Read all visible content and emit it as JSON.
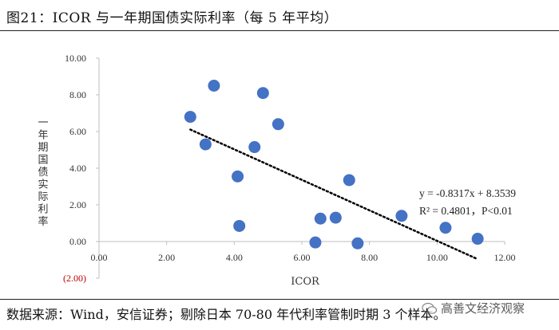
{
  "header": {
    "title": "图21：ICOR 与一年期国债实际利率（每 5 年平均）"
  },
  "footer": {
    "source": "数据来源：Wind，安信证券；剔除日本 70-80 年代利率管制时期 3 个样本。",
    "watermark": "高善文经济观察"
  },
  "chart_data": {
    "type": "scatter",
    "title": "",
    "xlabel": "ICOR",
    "ylabel": "一年期国债实际利率",
    "xlim": [
      0,
      12
    ],
    "ylim": [
      -2,
      10
    ],
    "x_ticks": [
      "0.00",
      "2.00",
      "4.00",
      "6.00",
      "8.00",
      "10.00",
      "12.00"
    ],
    "y_ticks": [
      "10.00",
      "8.00",
      "6.00",
      "4.00",
      "2.00",
      "0.00",
      "(2.00)"
    ],
    "x_tick_values": [
      0,
      2,
      4,
      6,
      8,
      10,
      12
    ],
    "y_tick_values": [
      10,
      8,
      6,
      4,
      2,
      0,
      -2
    ],
    "grid": false,
    "marker_color": "#4472c4",
    "negative_label_color": "#c00000",
    "points": [
      {
        "x": 2.7,
        "y": 6.8
      },
      {
        "x": 3.4,
        "y": 8.5
      },
      {
        "x": 3.15,
        "y": 5.3
      },
      {
        "x": 4.1,
        "y": 3.55
      },
      {
        "x": 4.15,
        "y": 0.85
      },
      {
        "x": 4.6,
        "y": 5.15
      },
      {
        "x": 4.85,
        "y": 8.1
      },
      {
        "x": 5.3,
        "y": 6.4
      },
      {
        "x": 6.4,
        "y": -0.05
      },
      {
        "x": 6.55,
        "y": 1.25
      },
      {
        "x": 7.0,
        "y": 1.3
      },
      {
        "x": 7.4,
        "y": 3.35
      },
      {
        "x": 7.65,
        "y": -0.1
      },
      {
        "x": 8.95,
        "y": 1.4
      },
      {
        "x": 10.25,
        "y": 0.75
      },
      {
        "x": 11.2,
        "y": 0.15
      }
    ],
    "trendline": {
      "slope": -0.8317,
      "intercept": 8.3539,
      "x_range": [
        2.7,
        11.2
      ],
      "style": "dotted",
      "equation": "y = -0.8317x + 8.3539",
      "stats": "R² = 0.4801，P<0.01"
    }
  }
}
